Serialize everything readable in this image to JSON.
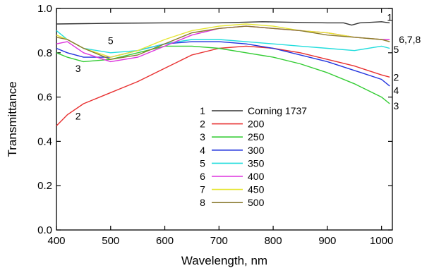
{
  "chart_data": {
    "type": "line",
    "xlabel": "Wavelength, nm",
    "ylabel": "Transmittance",
    "xlim": [
      400,
      1020
    ],
    "ylim": [
      0.0,
      1.0
    ],
    "x_ticks": [
      "400",
      "500",
      "600",
      "700",
      "800",
      "900",
      "1000"
    ],
    "y_ticks": [
      "0.0",
      "0.2",
      "0.4",
      "0.6",
      "0.8",
      "1.0"
    ],
    "grid": false,
    "legend_position": "center",
    "series": [
      {
        "id": "1",
        "name": "Corning 1737",
        "color": "#333333",
        "x": [
          400,
          500,
          600,
          700,
          780,
          850,
          900,
          930,
          945,
          960,
          1000,
          1015
        ],
        "y": [
          0.93,
          0.933,
          0.935,
          0.935,
          0.94,
          0.937,
          0.935,
          0.935,
          0.925,
          0.935,
          0.94,
          0.935
        ]
      },
      {
        "id": "2",
        "name": "200",
        "color": "#e83030",
        "x": [
          400,
          420,
          450,
          500,
          550,
          600,
          650,
          700,
          750,
          800,
          850,
          900,
          950,
          1000,
          1015
        ],
        "y": [
          0.47,
          0.52,
          0.57,
          0.62,
          0.67,
          0.73,
          0.79,
          0.82,
          0.83,
          0.82,
          0.8,
          0.77,
          0.74,
          0.7,
          0.69
        ]
      },
      {
        "id": "3",
        "name": "250",
        "color": "#33cc33",
        "x": [
          400,
          420,
          450,
          500,
          550,
          600,
          650,
          700,
          750,
          800,
          850,
          900,
          950,
          1000,
          1015
        ],
        "y": [
          0.8,
          0.78,
          0.76,
          0.77,
          0.8,
          0.83,
          0.83,
          0.82,
          0.8,
          0.78,
          0.75,
          0.71,
          0.66,
          0.6,
          0.57
        ]
      },
      {
        "id": "4",
        "name": "300",
        "color": "#2233dd",
        "x": [
          400,
          420,
          450,
          500,
          550,
          600,
          650,
          700,
          750,
          800,
          850,
          900,
          950,
          1000,
          1015
        ],
        "y": [
          0.82,
          0.8,
          0.78,
          0.78,
          0.81,
          0.84,
          0.85,
          0.85,
          0.84,
          0.82,
          0.79,
          0.76,
          0.72,
          0.68,
          0.65
        ]
      },
      {
        "id": "5",
        "name": "350",
        "color": "#22dddd",
        "x": [
          400,
          420,
          450,
          500,
          550,
          600,
          650,
          700,
          750,
          800,
          850,
          900,
          950,
          1000,
          1015
        ],
        "y": [
          0.9,
          0.86,
          0.82,
          0.8,
          0.81,
          0.84,
          0.86,
          0.86,
          0.85,
          0.84,
          0.83,
          0.82,
          0.81,
          0.83,
          0.82
        ]
      },
      {
        "id": "6",
        "name": "400",
        "color": "#dd33dd",
        "x": [
          400,
          420,
          450,
          500,
          550,
          600,
          650,
          700,
          750,
          800,
          850,
          900,
          950,
          1000,
          1015
        ],
        "y": [
          0.84,
          0.85,
          0.8,
          0.76,
          0.78,
          0.83,
          0.88,
          0.91,
          0.92,
          0.91,
          0.9,
          0.89,
          0.87,
          0.86,
          0.86
        ]
      },
      {
        "id": "7",
        "name": "450",
        "color": "#e6e633",
        "x": [
          400,
          420,
          450,
          500,
          550,
          600,
          650,
          700,
          750,
          800,
          850,
          900,
          950,
          1000,
          1015
        ],
        "y": [
          0.88,
          0.86,
          0.82,
          0.78,
          0.81,
          0.86,
          0.9,
          0.92,
          0.93,
          0.92,
          0.9,
          0.89,
          0.87,
          0.86,
          0.85
        ]
      },
      {
        "id": "8",
        "name": "500",
        "color": "#8a7a30",
        "x": [
          400,
          420,
          450,
          500,
          550,
          600,
          650,
          700,
          750,
          800,
          850,
          900,
          950,
          1000,
          1015
        ],
        "y": [
          0.87,
          0.86,
          0.82,
          0.77,
          0.79,
          0.84,
          0.89,
          0.91,
          0.92,
          0.91,
          0.9,
          0.88,
          0.87,
          0.86,
          0.85
        ]
      }
    ],
    "annotations": [
      {
        "text": "1",
        "x": 1010,
        "y": 0.96
      },
      {
        "text": "6,7,8",
        "x": 1032,
        "y": 0.86
      },
      {
        "text": "5",
        "x": 1022,
        "y": 0.815
      },
      {
        "text": "2",
        "x": 1022,
        "y": 0.69
      },
      {
        "text": "4",
        "x": 1022,
        "y": 0.63
      },
      {
        "text": "3",
        "x": 1022,
        "y": 0.56
      },
      {
        "text": "5",
        "x": 500,
        "y": 0.855
      },
      {
        "text": "3",
        "x": 440,
        "y": 0.73
      },
      {
        "text": "2",
        "x": 440,
        "y": 0.515
      }
    ]
  }
}
